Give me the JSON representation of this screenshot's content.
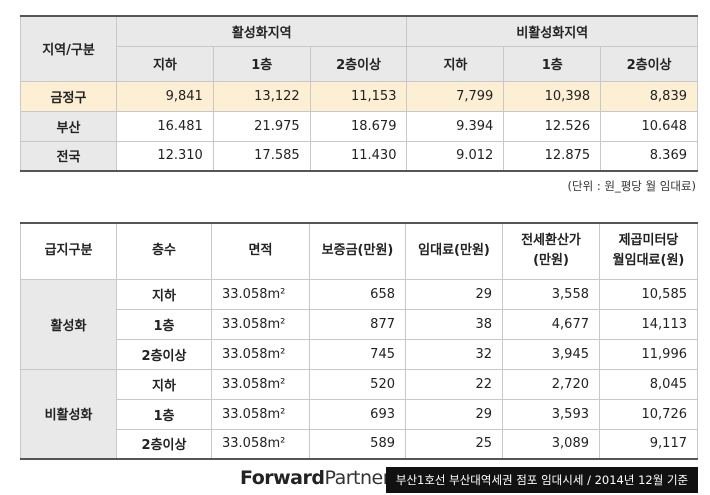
{
  "table1": {
    "corner": "지역/구분",
    "groups": [
      "활성화지역",
      "비활성화지역"
    ],
    "subheaders": [
      "지하",
      "1층",
      "2층이상",
      "지하",
      "1층",
      "2층이상"
    ],
    "rows": [
      {
        "label": "금정구",
        "values": [
          "9,841",
          "13,122",
          "11,153",
          "7,799",
          "10,398",
          "8,839"
        ]
      },
      {
        "label": "부산",
        "values": [
          "16.481",
          "21.975",
          "18.679",
          "9.394",
          "12.526",
          "10.648"
        ]
      },
      {
        "label": "전국",
        "values": [
          "12.310",
          "17.585",
          "11.430",
          "9.012",
          "12.875",
          "8.369"
        ]
      }
    ]
  },
  "unit_note": "(단위 : 원_평당 월 임대료)",
  "table2": {
    "headers": [
      [
        "급지구분"
      ],
      [
        "층수"
      ],
      [
        "면적"
      ],
      [
        "보증금(만원)"
      ],
      [
        "임대료(만원)"
      ],
      [
        "전세환산가",
        "(만원)"
      ],
      [
        "제곱미터당",
        "월임대료(원)"
      ]
    ],
    "groups": [
      {
        "name": "활성화",
        "rows": [
          [
            "지하",
            "33.058m²",
            "658",
            "29",
            "3,558",
            "10,585"
          ],
          [
            "1층",
            "33.058m²",
            "877",
            "38",
            "4,677",
            "14,113"
          ],
          [
            "2층이상",
            "33.058m²",
            "745",
            "32",
            "3,945",
            "11,996"
          ]
        ]
      },
      {
        "name": "비활성화",
        "rows": [
          [
            "지하",
            "33.058m²",
            "520",
            "22",
            "2,720",
            "8,045"
          ],
          [
            "1층",
            "33.058m²",
            "693",
            "29",
            "3,593",
            "10,726"
          ],
          [
            "2층이상",
            "33.058m²",
            "589",
            "25",
            "3,089",
            "9,117"
          ]
        ]
      }
    ]
  },
  "footer": {
    "logo_bold": "Forward",
    "logo_light": "Partners",
    "caption": "부산1호선 부산대역세권 점포 임대시세 / 2014년 12월 기준"
  }
}
